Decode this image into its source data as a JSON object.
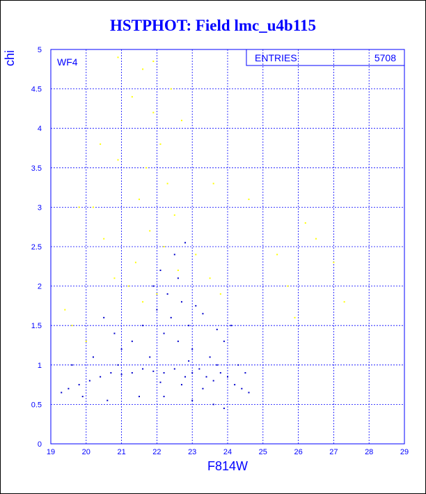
{
  "chart_data": {
    "type": "scatter",
    "title": "HSTPHOT: Field lmc_u4b115",
    "xlabel": "F814W",
    "ylabel": "chi",
    "xlim": [
      19,
      29
    ],
    "ylim": [
      0,
      5
    ],
    "x_ticks": [
      "19",
      "20",
      "21",
      "22",
      "23",
      "24",
      "25",
      "26",
      "27",
      "28",
      "29"
    ],
    "y_ticks": [
      "0",
      "0.5",
      "1",
      "1.5",
      "2",
      "2.5",
      "3",
      "3.5",
      "4",
      "4.5",
      "5"
    ],
    "grid": true,
    "annotations": {
      "field_label": "WF4",
      "stats_label": "ENTRIES",
      "stats_value": "5708"
    },
    "colors": {
      "frame": "#0000ff",
      "primary_points": "#0000cc",
      "secondary_points": "#ffff00",
      "title": "#0000ff"
    },
    "series": [
      {
        "color": "#0000cc",
        "points": [
          [
            23.4,
            0.85
          ],
          [
            23.6,
            0.8
          ],
          [
            23.8,
            0.9
          ],
          [
            23.2,
            0.95
          ],
          [
            23.0,
            0.9
          ],
          [
            22.8,
            0.85
          ],
          [
            22.5,
            0.95
          ],
          [
            22.2,
            0.9
          ],
          [
            21.9,
            0.92
          ],
          [
            21.6,
            0.95
          ],
          [
            21.3,
            0.9
          ],
          [
            21.0,
            0.88
          ],
          [
            20.7,
            0.9
          ],
          [
            20.4,
            0.85
          ],
          [
            20.1,
            0.8
          ],
          [
            19.8,
            0.75
          ],
          [
            19.5,
            0.7
          ],
          [
            19.3,
            0.65
          ],
          [
            24.0,
            0.85
          ],
          [
            24.2,
            0.75
          ],
          [
            24.4,
            0.7
          ],
          [
            24.6,
            0.65
          ],
          [
            23.5,
            1.1
          ],
          [
            23.0,
            1.2
          ],
          [
            22.6,
            1.3
          ],
          [
            22.2,
            1.4
          ],
          [
            22.9,
            1.5
          ],
          [
            22.4,
            1.6
          ],
          [
            22.0,
            1.7
          ],
          [
            22.7,
            1.8
          ],
          [
            22.3,
            1.9
          ],
          [
            21.9,
            2.0
          ],
          [
            22.6,
            2.1
          ],
          [
            22.1,
            2.2
          ],
          [
            22.5,
            2.4
          ],
          [
            22.8,
            2.55
          ],
          [
            21.6,
            1.5
          ],
          [
            21.3,
            1.3
          ],
          [
            21.0,
            1.2
          ],
          [
            20.8,
            1.4
          ],
          [
            20.5,
            1.6
          ],
          [
            20.2,
            1.1
          ],
          [
            23.9,
            1.3
          ],
          [
            24.1,
            1.5
          ],
          [
            24.3,
            1.0
          ],
          [
            23.7,
            1.45
          ],
          [
            23.3,
            1.65
          ],
          [
            23.1,
            1.75
          ],
          [
            22.2,
            0.6
          ],
          [
            23.0,
            0.55
          ],
          [
            23.6,
            0.5
          ],
          [
            23.9,
            0.45
          ],
          [
            21.5,
            0.6
          ],
          [
            20.6,
            0.55
          ],
          [
            19.9,
            0.6
          ],
          [
            19.6,
            1.0
          ],
          [
            20.9,
            1.0
          ],
          [
            21.8,
            1.1
          ],
          [
            22.9,
            1.05
          ],
          [
            23.7,
            1.0
          ],
          [
            24.5,
            0.9
          ],
          [
            23.3,
            0.7
          ],
          [
            22.7,
            0.75
          ],
          [
            22.1,
            0.78
          ]
        ]
      },
      {
        "color": "#ffff00",
        "points": [
          [
            21.9,
            4.2
          ],
          [
            22.1,
            3.8
          ],
          [
            21.7,
            3.5
          ],
          [
            22.3,
            3.3
          ],
          [
            21.5,
            3.1
          ],
          [
            22.5,
            2.9
          ],
          [
            21.8,
            2.7
          ],
          [
            22.2,
            2.5
          ],
          [
            21.4,
            2.3
          ],
          [
            22.6,
            2.2
          ],
          [
            21.2,
            2.0
          ],
          [
            22.0,
            1.9
          ],
          [
            21.6,
            1.8
          ],
          [
            20.8,
            2.1
          ],
          [
            20.5,
            2.6
          ],
          [
            20.2,
            3.0
          ],
          [
            20.9,
            3.6
          ],
          [
            21.3,
            4.4
          ],
          [
            21.6,
            4.75
          ],
          [
            21.9,
            4.85
          ],
          [
            20.9,
            4.9
          ],
          [
            22.4,
            4.5
          ],
          [
            22.7,
            4.1
          ],
          [
            20.4,
            3.8
          ],
          [
            19.8,
            3.0
          ],
          [
            19.6,
            1.5
          ],
          [
            19.4,
            1.7
          ],
          [
            20.0,
            1.3
          ],
          [
            23.1,
            2.4
          ],
          [
            23.5,
            2.1
          ],
          [
            23.8,
            1.9
          ],
          [
            25.7,
            2.0
          ],
          [
            25.9,
            1.6
          ],
          [
            26.2,
            2.8
          ],
          [
            26.5,
            2.6
          ],
          [
            27.3,
            1.8
          ],
          [
            27.0,
            2.3
          ],
          [
            25.4,
            2.4
          ],
          [
            24.6,
            3.1
          ],
          [
            23.6,
            3.3
          ]
        ]
      }
    ]
  }
}
